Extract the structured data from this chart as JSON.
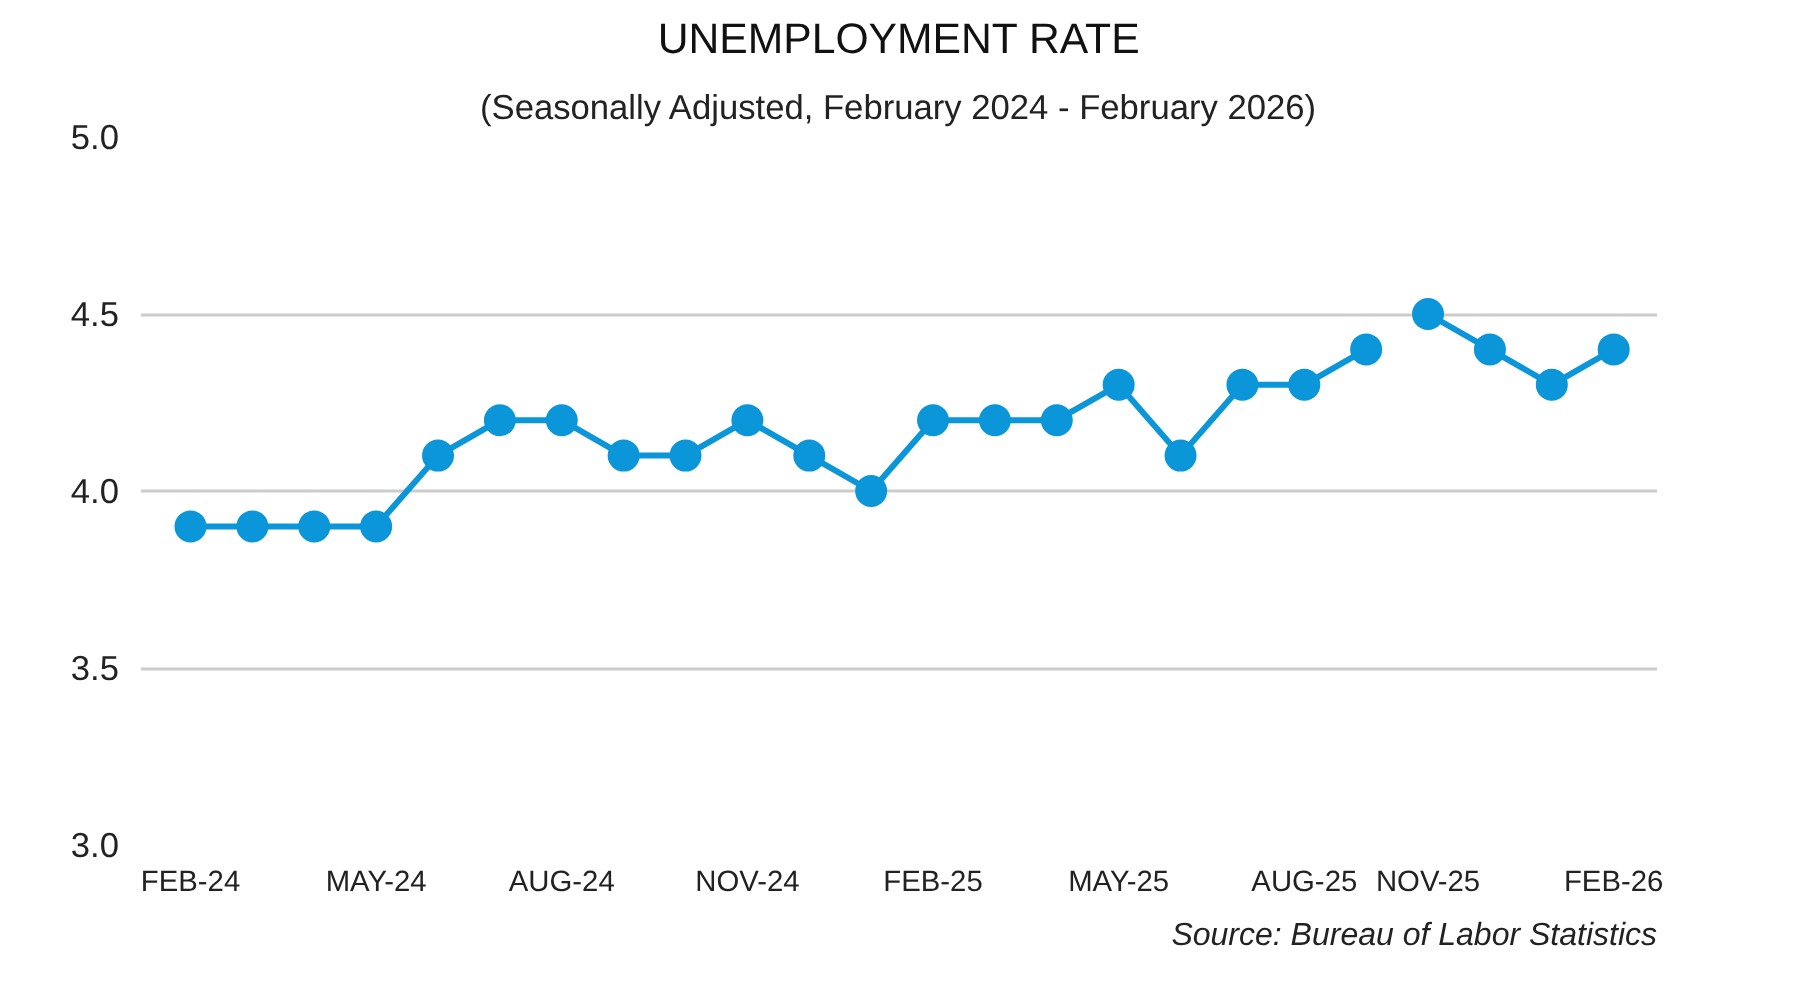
{
  "chart_data": {
    "type": "line",
    "title": "UNEMPLOYMENT RATE",
    "subtitle": "(Seasonally Adjusted, February 2024 - February 2026)",
    "categories": [
      "FEB-24",
      null,
      null,
      "MAY-24",
      null,
      null,
      "AUG-24",
      null,
      null,
      "NOV-24",
      null,
      null,
      "FEB-25",
      null,
      null,
      "MAY-25",
      null,
      null,
      "AUG-25",
      null,
      "NOV-25",
      null,
      null,
      "FEB-26"
    ],
    "series": [
      {
        "color": "#0a96d8",
        "values": [
          3.9,
          3.9,
          3.9,
          3.9,
          4.1,
          4.2,
          4.2,
          4.1,
          4.1,
          4.2,
          4.1,
          4.0,
          4.2,
          4.2,
          4.2,
          4.3,
          4.1,
          4.3,
          4.3,
          4.4,
          null,
          null,
          null,
          null
        ]
      },
      {
        "color": "#0a96d8",
        "values": [
          null,
          null,
          null,
          null,
          null,
          null,
          null,
          null,
          null,
          null,
          null,
          null,
          null,
          null,
          null,
          null,
          null,
          null,
          null,
          null,
          4.5,
          4.4,
          4.3,
          4.4
        ]
      }
    ],
    "ylim": [
      3.0,
      5.0
    ],
    "yticks": [
      {
        "value": 3.0,
        "label": "3.0"
      },
      {
        "value": 3.5,
        "label": "3.5"
      },
      {
        "value": 4.0,
        "label": "4.0"
      },
      {
        "value": 4.5,
        "label": "4.5"
      },
      {
        "value": 5.0,
        "label": "5.0"
      }
    ],
    "grid": "y",
    "marker": "circle",
    "line_style": "solid",
    "annotations": [
      "Source: Bureau of Labor Statistics"
    ]
  }
}
